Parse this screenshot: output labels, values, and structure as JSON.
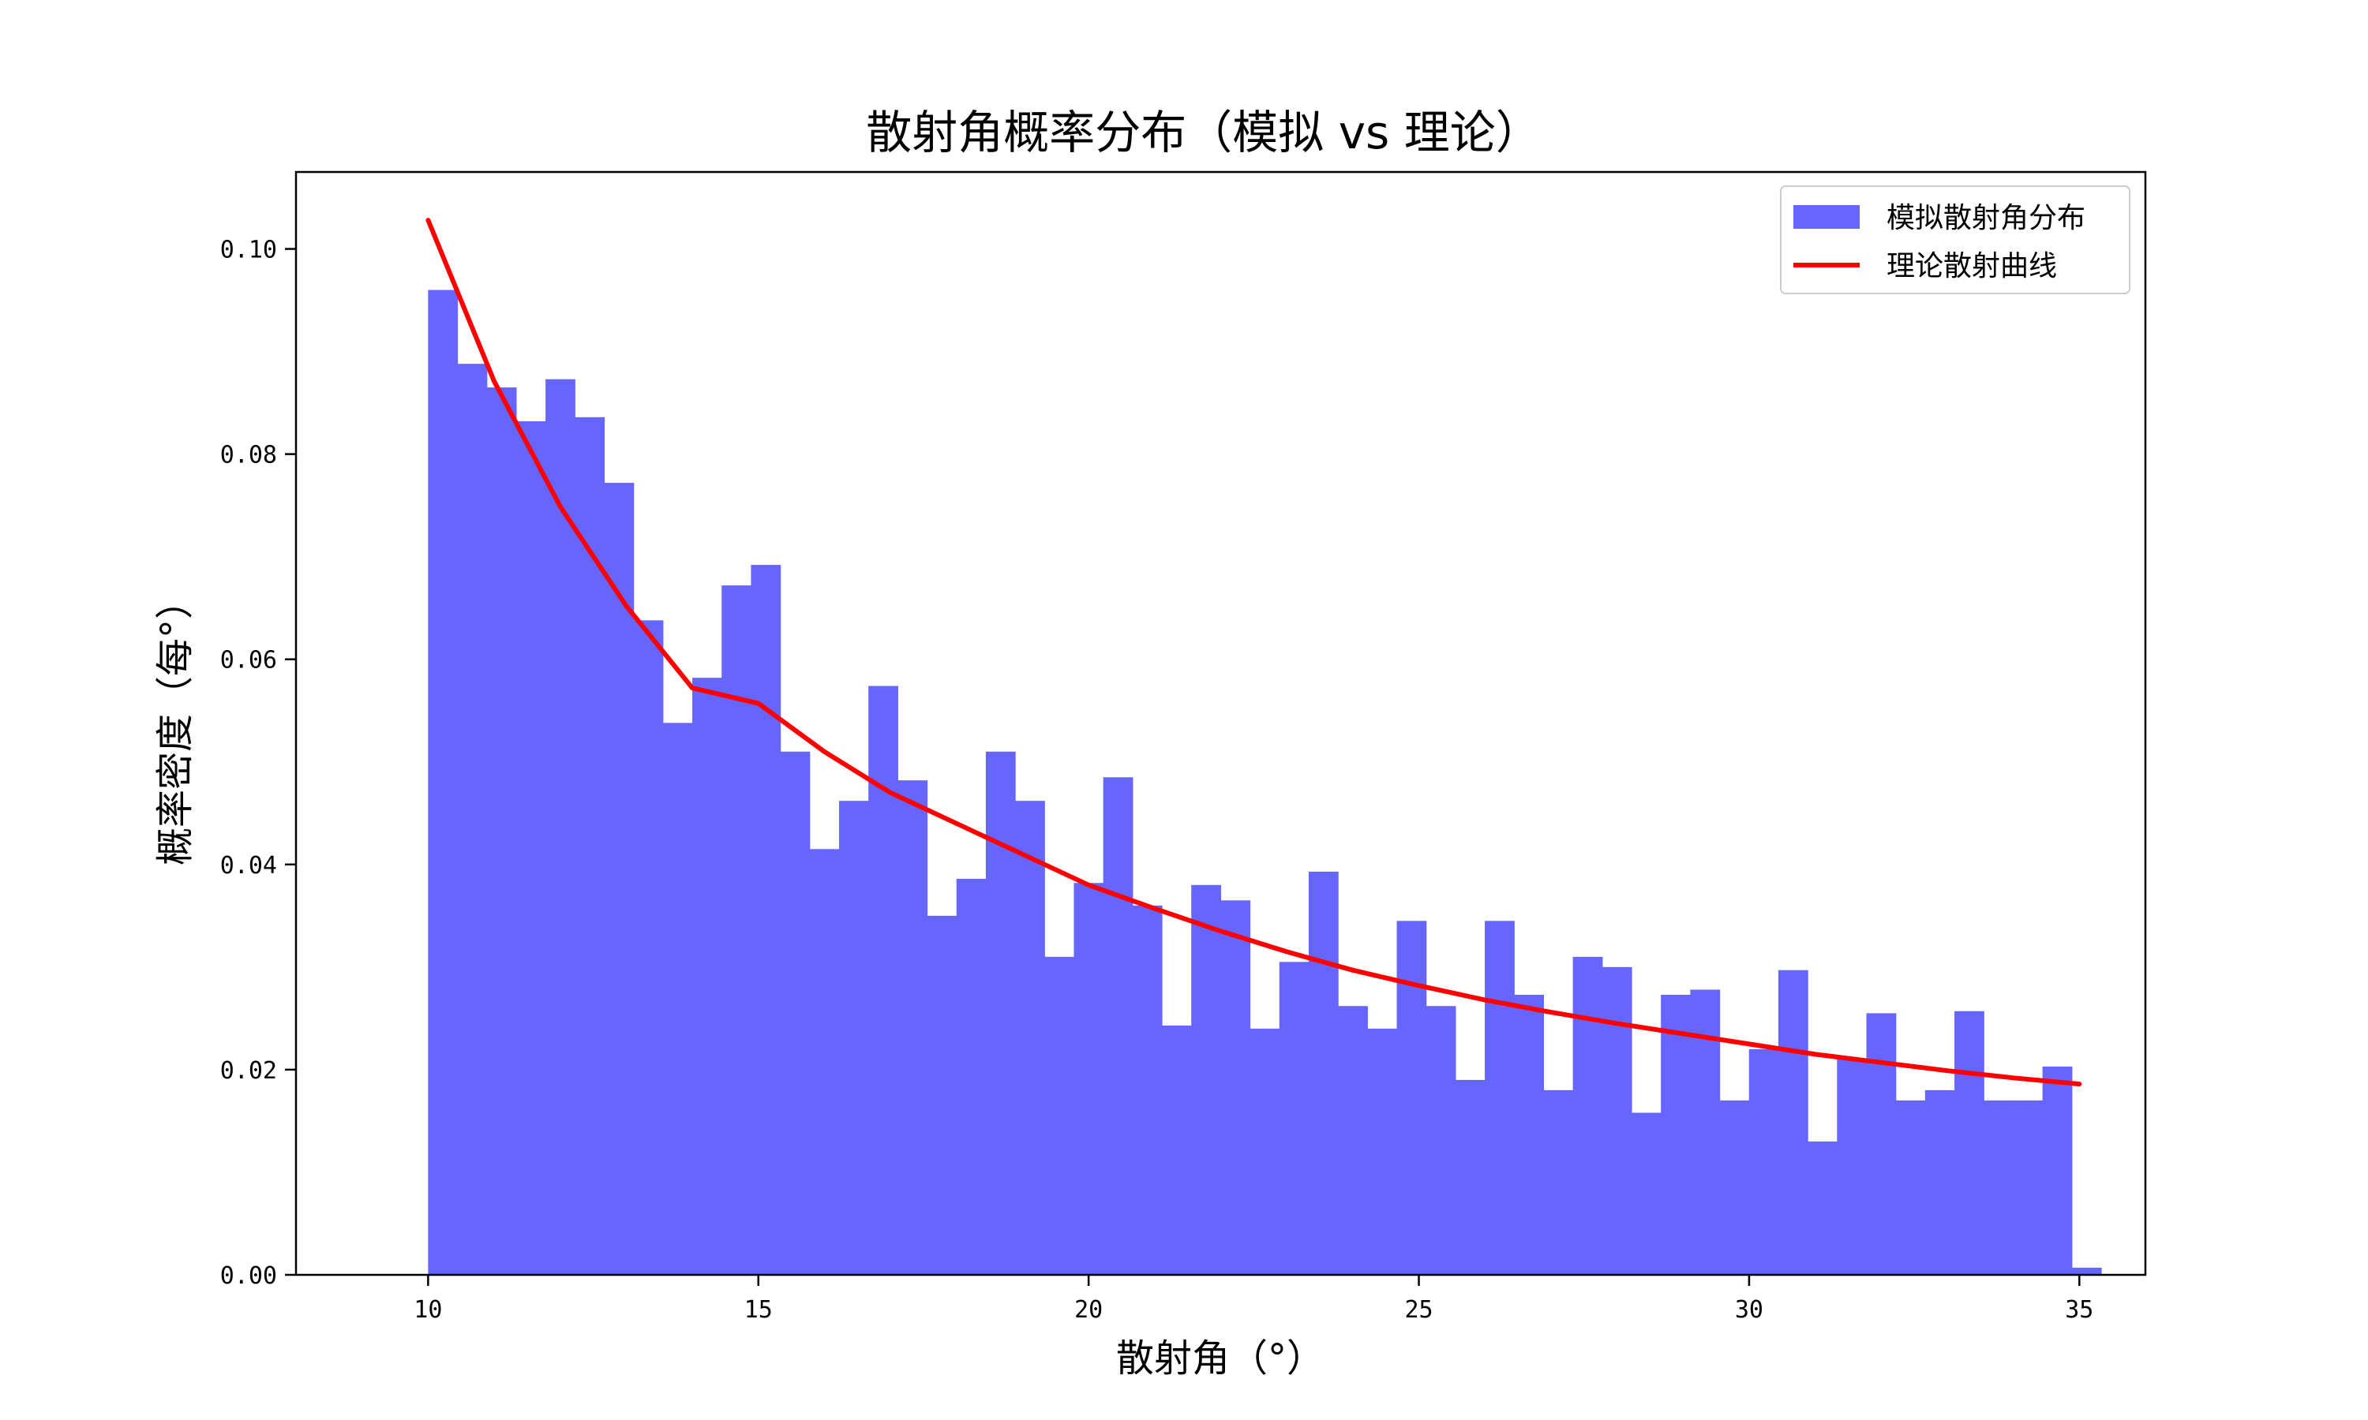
{
  "chart_data": {
    "type": "bar",
    "title": "散射角概率分布（模拟 vs 理论）",
    "xlabel": "散射角（°）",
    "ylabel": "概率密度（每°）",
    "xlim": [
      8,
      36
    ],
    "ylim": [
      0,
      0.1075
    ],
    "xticks": [
      10,
      15,
      20,
      25,
      30,
      35
    ],
    "xtick_labels": [
      "10",
      "15",
      "20",
      "25",
      "30",
      "35"
    ],
    "yticks": [
      0.0,
      0.02,
      0.04,
      0.06,
      0.08,
      0.1
    ],
    "ytick_labels": [
      "0.00",
      "0.02",
      "0.04",
      "0.06",
      "0.08",
      "0.10"
    ],
    "grid": false,
    "legend_position": "top-right",
    "series": [
      {
        "name": "模拟散射角分布",
        "type": "histogram",
        "color": "#6666ff",
        "bin_start": 10.0,
        "bin_width": 0.4444,
        "values": [
          0.096,
          0.0888,
          0.0865,
          0.0832,
          0.0873,
          0.0836,
          0.0772,
          0.0638,
          0.0538,
          0.0582,
          0.0672,
          0.0692,
          0.051,
          0.0415,
          0.0462,
          0.0574,
          0.0482,
          0.035,
          0.0386,
          0.051,
          0.0462,
          0.031,
          0.0382,
          0.0485,
          0.036,
          0.0243,
          0.038,
          0.0365,
          0.024,
          0.0305,
          0.0393,
          0.0262,
          0.024,
          0.0345,
          0.0262,
          0.019,
          0.0345,
          0.0273,
          0.018,
          0.031,
          0.03,
          0.0158,
          0.0273,
          0.0278,
          0.017,
          0.022,
          0.0297,
          0.013,
          0.021,
          0.0255,
          0.017,
          0.018,
          0.0257,
          0.017,
          0.017,
          0.0203,
          0.0007
        ]
      },
      {
        "name": "理论散射曲线",
        "type": "line",
        "color": "#ff0000",
        "x": [
          10,
          11,
          12,
          13,
          14,
          15,
          16,
          17,
          18,
          19,
          20,
          21,
          22,
          23,
          24,
          25,
          26,
          27,
          28,
          29,
          30,
          31,
          32,
          33,
          34,
          35
        ],
        "y": [
          0.1028,
          0.0871,
          0.0749,
          0.0652,
          0.0572,
          0.0557,
          0.051,
          0.047,
          0.044,
          0.041,
          0.038,
          0.0357,
          0.0335,
          0.0315,
          0.0297,
          0.0282,
          0.0268,
          0.0256,
          0.0245,
          0.0235,
          0.0225,
          0.0215,
          0.0207,
          0.0199,
          0.0192,
          0.0186
        ]
      }
    ]
  }
}
